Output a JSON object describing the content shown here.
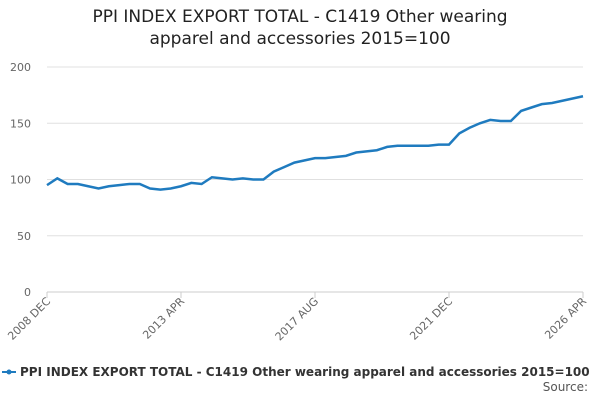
{
  "chart_data": {
    "type": "line",
    "title": "PPI INDEX EXPORT TOTAL - C1419 Other wearing apparel and accessories 2015=100",
    "categories": [
      "2008 DEC",
      null,
      null,
      null,
      null,
      null,
      null,
      null,
      null,
      null,
      null,
      null,
      null,
      "2013 APR",
      null,
      null,
      null,
      null,
      null,
      null,
      null,
      null,
      null,
      null,
      null,
      null,
      "2017 AUG",
      null,
      null,
      null,
      null,
      null,
      null,
      null,
      null,
      null,
      null,
      null,
      null,
      "2021 DEC",
      null,
      null,
      null,
      null,
      null,
      null,
      null,
      null,
      null,
      null,
      null,
      null,
      "2026 APR"
    ],
    "series": [
      {
        "name": "PPI INDEX EXPORT TOTAL - C1419 Other wearing apparel and accessories 2015=100",
        "color": "#1f7bbf",
        "values": [
          95,
          101,
          96,
          96,
          94,
          92,
          94,
          95,
          96,
          96,
          92,
          91,
          92,
          94,
          97,
          96,
          102,
          101,
          100,
          101,
          100,
          100,
          107,
          111,
          115,
          117,
          119,
          119,
          120,
          121,
          124,
          125,
          126,
          129,
          130,
          130,
          130,
          130,
          131,
          131,
          141,
          146,
          150,
          153,
          152,
          152,
          161,
          164,
          167,
          168,
          170,
          172,
          174
        ]
      }
    ],
    "ylim": [
      0,
      200
    ],
    "yticks": [
      0,
      50,
      100,
      150,
      200
    ],
    "grid": true,
    "source": "Source:"
  }
}
